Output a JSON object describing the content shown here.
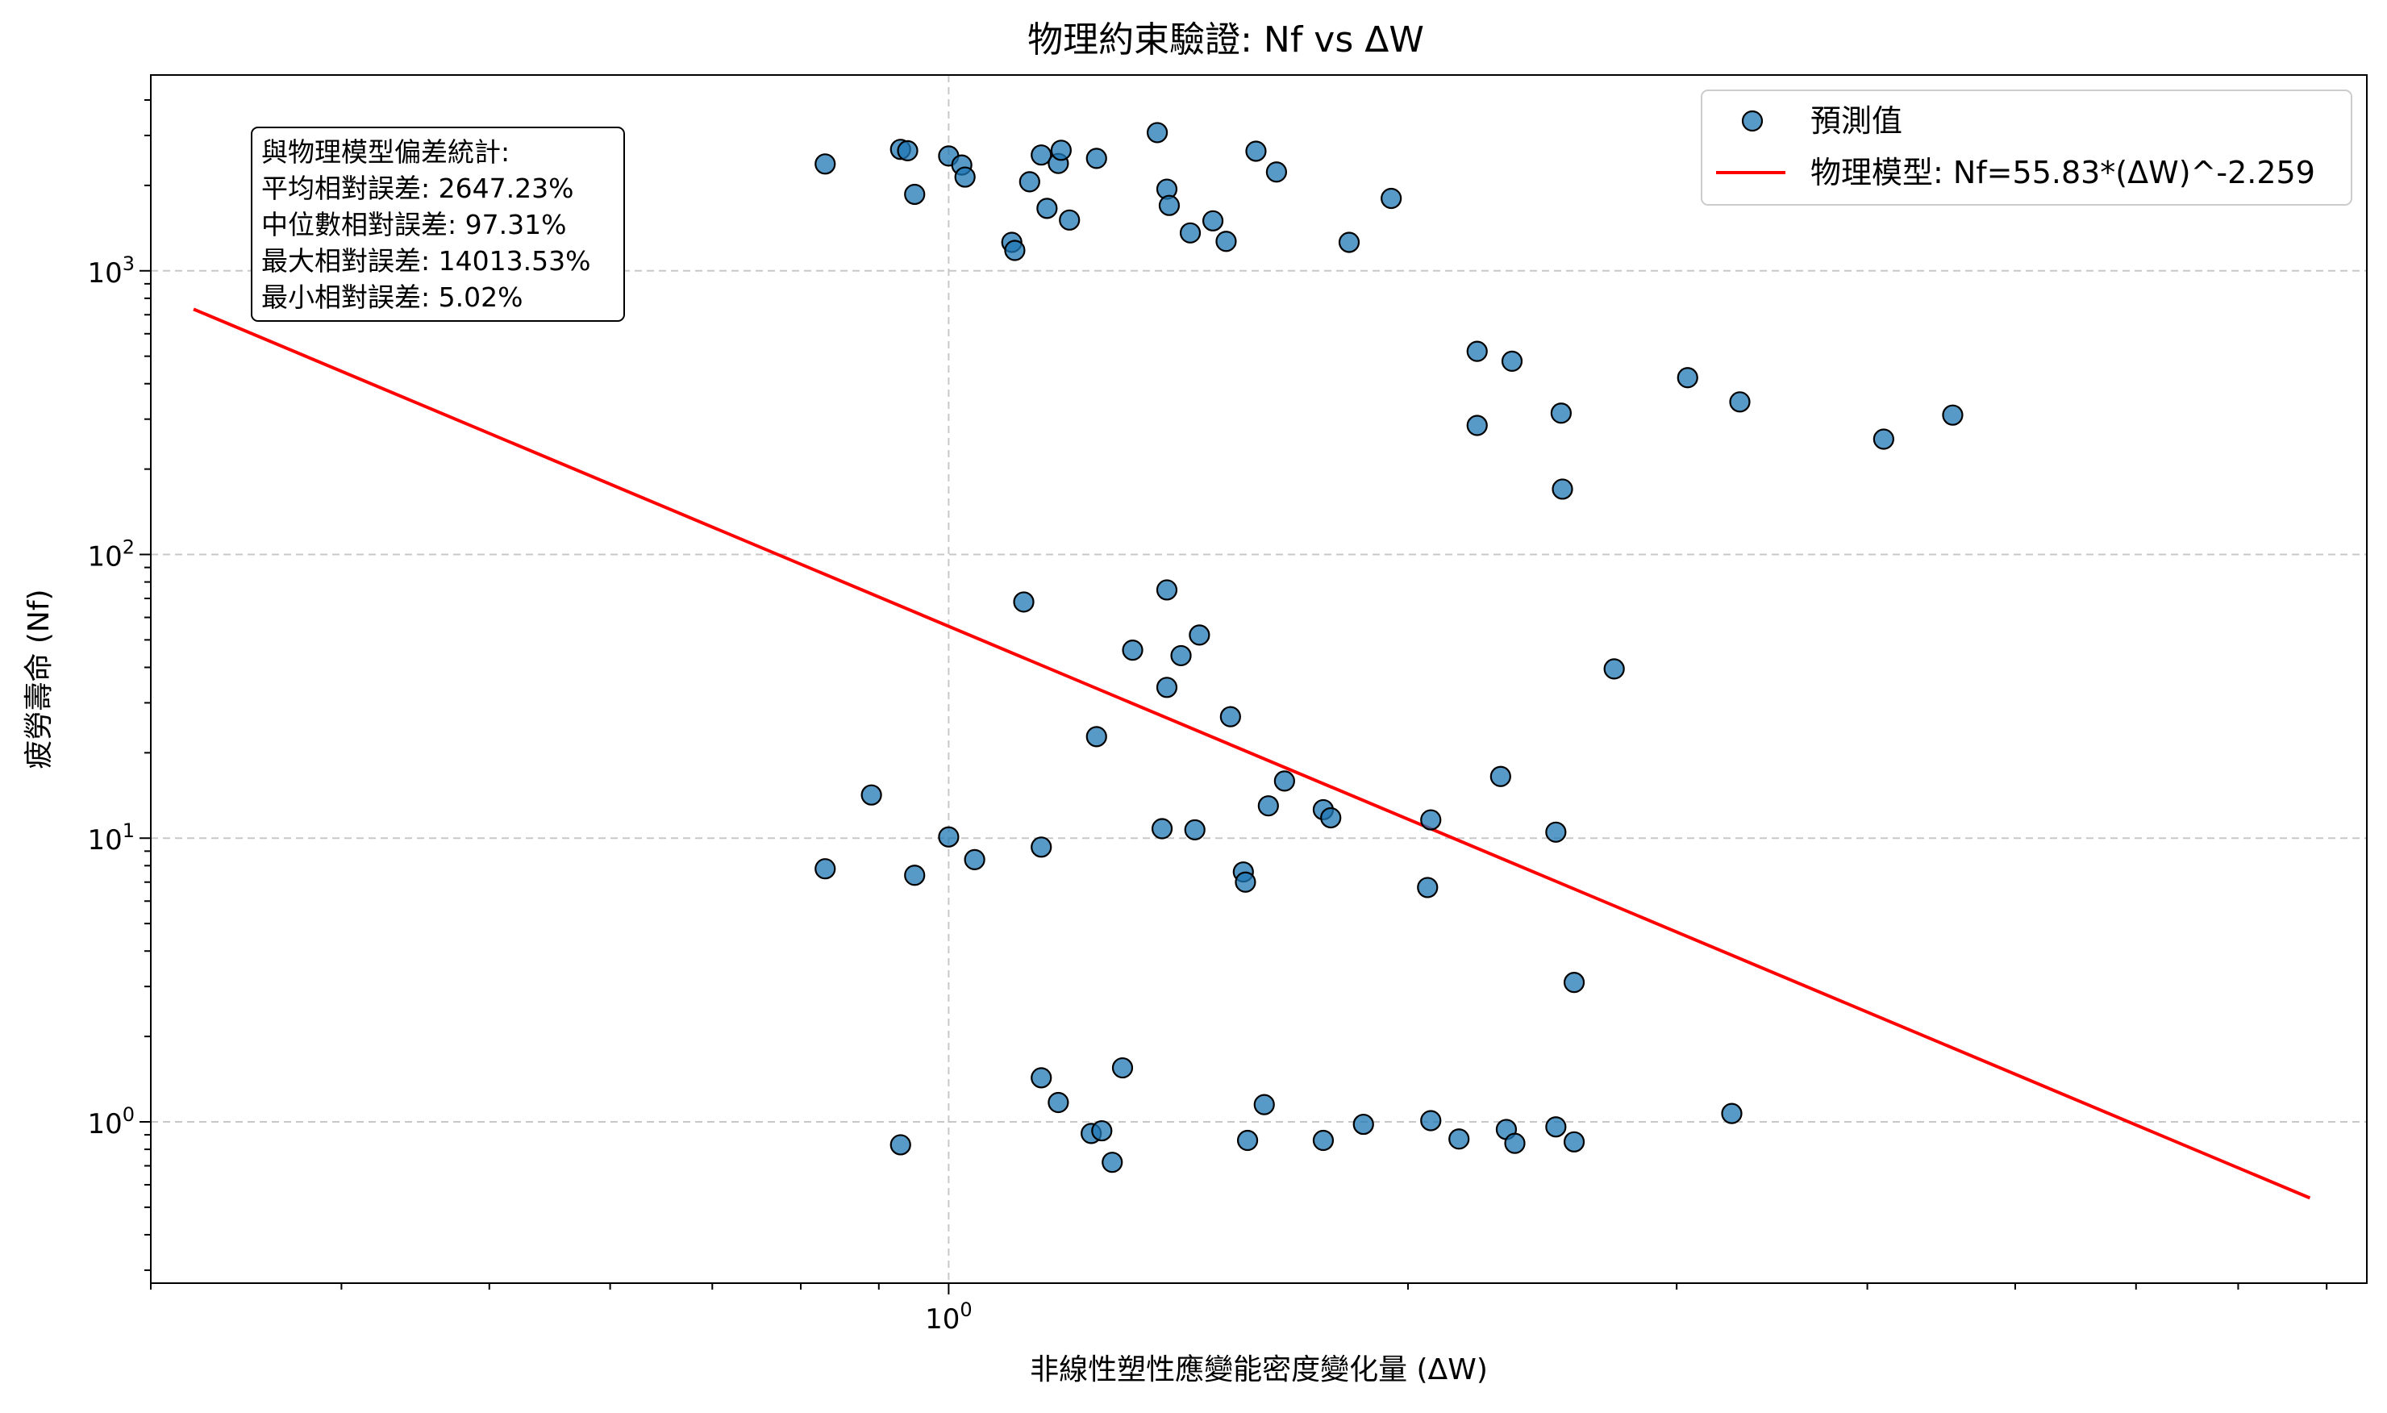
{
  "chart_data": {
    "type": "scatter",
    "title": "物理約束驗證: Nf vs ΔW",
    "xlabel": "非線性塑性應變能密度變化量 (ΔW)",
    "ylabel": "疲勞壽命 (Nf)",
    "x_scale": "log",
    "y_scale": "log",
    "xlim": [
      0.3,
      8.5
    ],
    "ylim": [
      0.27,
      4900
    ],
    "grid": true,
    "legend_position": "top-right",
    "x_ticks": [
      {
        "value": 1,
        "base": "10",
        "exp": "0"
      }
    ],
    "y_ticks": [
      {
        "value": 1,
        "base": "10",
        "exp": "0"
      },
      {
        "value": 10,
        "base": "10",
        "exp": "1"
      },
      {
        "value": 100,
        "base": "10",
        "exp": "2"
      },
      {
        "value": 1000,
        "base": "10",
        "exp": "3"
      }
    ],
    "series": [
      {
        "name": "預測值",
        "kind": "scatter",
        "color": "#1f77b4",
        "edge_color": "#000000",
        "points": [
          [
            0.83,
            2380
          ],
          [
            0.93,
            2680
          ],
          [
            0.94,
            2650
          ],
          [
            0.95,
            1860
          ],
          [
            1.0,
            2540
          ],
          [
            1.02,
            2360
          ],
          [
            1.025,
            2140
          ],
          [
            1.1,
            1260
          ],
          [
            1.105,
            1180
          ],
          [
            1.13,
            2060
          ],
          [
            1.15,
            2560
          ],
          [
            1.16,
            1660
          ],
          [
            1.18,
            2390
          ],
          [
            1.185,
            2660
          ],
          [
            1.2,
            1510
          ],
          [
            1.25,
            2490
          ],
          [
            1.37,
            3070
          ],
          [
            1.39,
            1940
          ],
          [
            1.395,
            1700
          ],
          [
            1.44,
            1360
          ],
          [
            1.49,
            1500
          ],
          [
            1.52,
            1270
          ],
          [
            1.59,
            2640
          ],
          [
            1.64,
            2230
          ],
          [
            1.83,
            1260
          ],
          [
            1.95,
            1800
          ],
          [
            2.22,
            520
          ],
          [
            2.22,
            285
          ],
          [
            2.34,
            480
          ],
          [
            2.52,
            315
          ],
          [
            2.525,
            170
          ],
          [
            3.05,
            420
          ],
          [
            3.3,
            345
          ],
          [
            4.1,
            255
          ],
          [
            4.55,
            310
          ],
          [
            0.83,
            7.8
          ],
          [
            0.89,
            14.2
          ],
          [
            0.95,
            7.4
          ],
          [
            1.0,
            10.1
          ],
          [
            1.04,
            8.4
          ],
          [
            1.12,
            68
          ],
          [
            1.15,
            9.3
          ],
          [
            1.25,
            22.8
          ],
          [
            1.32,
            46
          ],
          [
            1.38,
            10.8
          ],
          [
            1.39,
            34
          ],
          [
            1.39,
            75
          ],
          [
            1.42,
            44
          ],
          [
            1.45,
            10.7
          ],
          [
            1.46,
            52
          ],
          [
            1.53,
            26.8
          ],
          [
            1.56,
            7.6
          ],
          [
            1.565,
            7.0
          ],
          [
            1.62,
            13.0
          ],
          [
            1.66,
            15.9
          ],
          [
            1.76,
            12.6
          ],
          [
            1.78,
            11.8
          ],
          [
            2.07,
            11.6
          ],
          [
            2.06,
            6.7
          ],
          [
            2.3,
            16.5
          ],
          [
            2.5,
            10.5
          ],
          [
            2.73,
            39.5
          ],
          [
            2.57,
            3.1
          ],
          [
            0.93,
            0.83
          ],
          [
            1.15,
            1.43
          ],
          [
            1.18,
            1.17
          ],
          [
            1.24,
            0.91
          ],
          [
            1.26,
            0.93
          ],
          [
            1.28,
            0.72
          ],
          [
            1.3,
            1.55
          ],
          [
            1.57,
            0.86
          ],
          [
            1.61,
            1.15
          ],
          [
            1.76,
            0.86
          ],
          [
            1.87,
            0.98
          ],
          [
            2.07,
            1.01
          ],
          [
            2.16,
            0.87
          ],
          [
            2.32,
            0.94
          ],
          [
            2.35,
            0.84
          ],
          [
            2.5,
            0.96
          ],
          [
            2.57,
            0.85
          ],
          [
            3.26,
            1.07
          ]
        ]
      },
      {
        "name": "物理模型: Nf=55.83*(ΔW)^-2.259",
        "kind": "line",
        "color": "#ff0000",
        "model": {
          "a": 55.83,
          "b": -2.259
        },
        "x_range": [
          0.32,
          7.8
        ]
      }
    ],
    "annotation": {
      "lines": [
        "與物理模型偏差統計:",
        "平均相對誤差: 2647.23%",
        "中位數相對誤差: 97.31%",
        "最大相對誤差: 14013.53%",
        "最小相對誤差: 5.02%"
      ],
      "position": "top-left"
    }
  }
}
